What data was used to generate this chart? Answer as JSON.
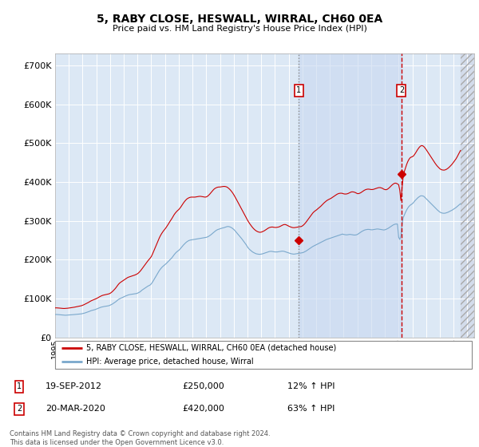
{
  "title": "5, RABY CLOSE, HESWALL, WIRRAL, CH60 0EA",
  "subtitle": "Price paid vs. HM Land Registry's House Price Index (HPI)",
  "ytick_values": [
    0,
    100000,
    200000,
    300000,
    400000,
    500000,
    600000,
    700000
  ],
  "ylim": [
    0,
    730000
  ],
  "xlim_start": 1995.0,
  "xlim_end": 2025.5,
  "plot_bg": "#dce8f5",
  "grid_color": "#c8d8e8",
  "red_color": "#cc0000",
  "blue_color": "#7aa8cc",
  "transaction1_date": 2012.72,
  "transaction1_price": 250000,
  "transaction2_date": 2020.21,
  "transaction2_price": 420000,
  "legend_label_red": "5, RABY CLOSE, HESWALL, WIRRAL, CH60 0EA (detached house)",
  "legend_label_blue": "HPI: Average price, detached house, Wirral",
  "table_rows": [
    {
      "num": "1",
      "date": "19-SEP-2012",
      "price": "£250,000",
      "change": "12% ↑ HPI"
    },
    {
      "num": "2",
      "date": "20-MAR-2020",
      "price": "£420,000",
      "change": "63% ↑ HPI"
    }
  ],
  "footer": "Contains HM Land Registry data © Crown copyright and database right 2024.\nThis data is licensed under the Open Government Licence v3.0.",
  "hpi_years": [
    1995.0,
    1995.083,
    1995.167,
    1995.25,
    1995.333,
    1995.417,
    1995.5,
    1995.583,
    1995.667,
    1995.75,
    1995.833,
    1995.917,
    1996.0,
    1996.083,
    1996.167,
    1996.25,
    1996.333,
    1996.417,
    1996.5,
    1996.583,
    1996.667,
    1996.75,
    1996.833,
    1996.917,
    1997.0,
    1997.083,
    1997.167,
    1997.25,
    1997.333,
    1997.417,
    1997.5,
    1997.583,
    1997.667,
    1997.75,
    1997.833,
    1997.917,
    1998.0,
    1998.083,
    1998.167,
    1998.25,
    1998.333,
    1998.417,
    1998.5,
    1998.583,
    1998.667,
    1998.75,
    1998.833,
    1998.917,
    1999.0,
    1999.083,
    1999.167,
    1999.25,
    1999.333,
    1999.417,
    1999.5,
    1999.583,
    1999.667,
    1999.75,
    1999.833,
    1999.917,
    2000.0,
    2000.083,
    2000.167,
    2000.25,
    2000.333,
    2000.417,
    2000.5,
    2000.583,
    2000.667,
    2000.75,
    2000.833,
    2000.917,
    2001.0,
    2001.083,
    2001.167,
    2001.25,
    2001.333,
    2001.417,
    2001.5,
    2001.583,
    2001.667,
    2001.75,
    2001.833,
    2001.917,
    2002.0,
    2002.083,
    2002.167,
    2002.25,
    2002.333,
    2002.417,
    2002.5,
    2002.583,
    2002.667,
    2002.75,
    2002.833,
    2002.917,
    2003.0,
    2003.083,
    2003.167,
    2003.25,
    2003.333,
    2003.417,
    2003.5,
    2003.583,
    2003.667,
    2003.75,
    2003.833,
    2003.917,
    2004.0,
    2004.083,
    2004.167,
    2004.25,
    2004.333,
    2004.417,
    2004.5,
    2004.583,
    2004.667,
    2004.75,
    2004.833,
    2004.917,
    2005.0,
    2005.083,
    2005.167,
    2005.25,
    2005.333,
    2005.417,
    2005.5,
    2005.583,
    2005.667,
    2005.75,
    2005.833,
    2005.917,
    2006.0,
    2006.083,
    2006.167,
    2006.25,
    2006.333,
    2006.417,
    2006.5,
    2006.583,
    2006.667,
    2006.75,
    2006.833,
    2006.917,
    2007.0,
    2007.083,
    2007.167,
    2007.25,
    2007.333,
    2007.417,
    2007.5,
    2007.583,
    2007.667,
    2007.75,
    2007.833,
    2007.917,
    2008.0,
    2008.083,
    2008.167,
    2008.25,
    2008.333,
    2008.417,
    2008.5,
    2008.583,
    2008.667,
    2008.75,
    2008.833,
    2008.917,
    2009.0,
    2009.083,
    2009.167,
    2009.25,
    2009.333,
    2009.417,
    2009.5,
    2009.583,
    2009.667,
    2009.75,
    2009.833,
    2009.917,
    2010.0,
    2010.083,
    2010.167,
    2010.25,
    2010.333,
    2010.417,
    2010.5,
    2010.583,
    2010.667,
    2010.75,
    2010.833,
    2010.917,
    2011.0,
    2011.083,
    2011.167,
    2011.25,
    2011.333,
    2011.417,
    2011.5,
    2011.583,
    2011.667,
    2011.75,
    2011.833,
    2011.917,
    2012.0,
    2012.083,
    2012.167,
    2012.25,
    2012.333,
    2012.417,
    2012.5,
    2012.583,
    2012.667,
    2012.75,
    2012.833,
    2012.917,
    2013.0,
    2013.083,
    2013.167,
    2013.25,
    2013.333,
    2013.417,
    2013.5,
    2013.583,
    2013.667,
    2013.75,
    2013.833,
    2013.917,
    2014.0,
    2014.083,
    2014.167,
    2014.25,
    2014.333,
    2014.417,
    2014.5,
    2014.583,
    2014.667,
    2014.75,
    2014.833,
    2014.917,
    2015.0,
    2015.083,
    2015.167,
    2015.25,
    2015.333,
    2015.417,
    2015.5,
    2015.583,
    2015.667,
    2015.75,
    2015.833,
    2015.917,
    2016.0,
    2016.083,
    2016.167,
    2016.25,
    2016.333,
    2016.417,
    2016.5,
    2016.583,
    2016.667,
    2016.75,
    2016.833,
    2016.917,
    2017.0,
    2017.083,
    2017.167,
    2017.25,
    2017.333,
    2017.417,
    2017.5,
    2017.583,
    2017.667,
    2017.75,
    2017.833,
    2017.917,
    2018.0,
    2018.083,
    2018.167,
    2018.25,
    2018.333,
    2018.417,
    2018.5,
    2018.583,
    2018.667,
    2018.75,
    2018.833,
    2018.917,
    2019.0,
    2019.083,
    2019.167,
    2019.25,
    2019.333,
    2019.417,
    2019.5,
    2019.583,
    2019.667,
    2019.75,
    2019.833,
    2019.917,
    2020.0,
    2020.083,
    2020.167,
    2020.25,
    2020.333,
    2020.417,
    2020.5,
    2020.583,
    2020.667,
    2020.75,
    2020.833,
    2020.917,
    2021.0,
    2021.083,
    2021.167,
    2021.25,
    2021.333,
    2021.417,
    2021.5,
    2021.583,
    2021.667,
    2021.75,
    2021.833,
    2021.917,
    2022.0,
    2022.083,
    2022.167,
    2022.25,
    2022.333,
    2022.417,
    2022.5,
    2022.583,
    2022.667,
    2022.75,
    2022.833,
    2022.917,
    2023.0,
    2023.083,
    2023.167,
    2023.25,
    2023.333,
    2023.417,
    2023.5,
    2023.583,
    2023.667,
    2023.75,
    2023.833,
    2023.917,
    2024.0,
    2024.083,
    2024.167,
    2024.25,
    2024.333,
    2024.417,
    2024.5
  ],
  "hpi_values": [
    59000,
    59200,
    59100,
    58800,
    58500,
    58200,
    57800,
    57500,
    57300,
    57200,
    57400,
    57600,
    58000,
    58200,
    58400,
    58600,
    58800,
    59100,
    59300,
    59600,
    59900,
    60200,
    60500,
    60800,
    61500,
    62200,
    63000,
    64000,
    65000,
    66000,
    67200,
    68500,
    69500,
    70200,
    71000,
    71800,
    73000,
    74200,
    75500,
    76800,
    77800,
    78500,
    79200,
    79800,
    80200,
    80800,
    81200,
    81800,
    83000,
    84500,
    86000,
    88000,
    90000,
    92000,
    94500,
    97000,
    99000,
    100500,
    101800,
    103000,
    104500,
    106000,
    107200,
    108500,
    109500,
    110200,
    110800,
    111200,
    111500,
    112000,
    112500,
    113000,
    114000,
    115500,
    117000,
    119500,
    122000,
    124000,
    126000,
    128000,
    130000,
    132000,
    133500,
    135000,
    138000,
    142000,
    147000,
    152000,
    157000,
    162000,
    167000,
    172000,
    176000,
    179500,
    182500,
    185000,
    187500,
    190000,
    193000,
    196000,
    199000,
    202000,
    205000,
    209000,
    213000,
    216500,
    219500,
    222000,
    224000,
    227000,
    230500,
    234000,
    237500,
    240500,
    243500,
    246000,
    248000,
    249500,
    250500,
    251000,
    251500,
    252000,
    252500,
    253000,
    253500,
    254000,
    254500,
    255000,
    255500,
    256000,
    256500,
    257000,
    257500,
    258500,
    260000,
    262000,
    264000,
    266500,
    269000,
    271500,
    274000,
    276000,
    277500,
    278500,
    279500,
    280500,
    281500,
    282000,
    283000,
    284000,
    285000,
    285500,
    285000,
    284000,
    282500,
    280500,
    278000,
    275000,
    271500,
    268000,
    264500,
    261000,
    257500,
    254000,
    250000,
    246000,
    242000,
    238000,
    233000,
    229000,
    226000,
    223500,
    221000,
    219000,
    217500,
    216000,
    215000,
    214500,
    214000,
    214000,
    214500,
    215000,
    216000,
    217000,
    218000,
    219000,
    220000,
    221000,
    221500,
    221500,
    221000,
    220500,
    220000,
    220000,
    220000,
    220500,
    221000,
    221500,
    222000,
    222000,
    221500,
    220500,
    219500,
    218500,
    217500,
    216500,
    215500,
    215000,
    214500,
    214500,
    215000,
    215500,
    216000,
    216500,
    217000,
    217500,
    218000,
    219000,
    220500,
    222000,
    224000,
    226000,
    228000,
    230000,
    232000,
    234000,
    235500,
    237000,
    238500,
    240000,
    241500,
    243000,
    244500,
    246000,
    247500,
    249000,
    250500,
    252000,
    253000,
    254000,
    255000,
    256000,
    257000,
    258000,
    259000,
    260000,
    261000,
    262000,
    263000,
    264000,
    265000,
    266000,
    265000,
    264500,
    264000,
    264000,
    264500,
    265000,
    265000,
    264500,
    264000,
    263500,
    263500,
    264000,
    265000,
    267000,
    269000,
    271000,
    273000,
    274500,
    276000,
    277000,
    277500,
    278000,
    278000,
    277500,
    277000,
    277000,
    277500,
    278000,
    278500,
    279000,
    279000,
    278500,
    278000,
    277500,
    277000,
    276500,
    277000,
    278000,
    279500,
    281000,
    283000,
    285000,
    287000,
    289000,
    290500,
    291500,
    291800,
    291500,
    258000,
    252000,
    262000,
    290000,
    308000,
    315000,
    322000,
    328000,
    333000,
    337000,
    340000,
    342000,
    344000,
    347000,
    351000,
    354000,
    357000,
    360000,
    362000,
    364000,
    364500,
    364000,
    363000,
    360000,
    357000,
    354000,
    351000,
    348000,
    345000,
    342000,
    339000,
    336000,
    333000,
    330000,
    327500,
    325000,
    322500,
    321000,
    320000,
    319500,
    319500,
    320000,
    321000,
    322000,
    323500,
    325000,
    326500,
    328000,
    330000,
    332000,
    334000,
    336500,
    339000,
    341500,
    344000
  ],
  "prop_years": [
    1995.0,
    1995.083,
    1995.167,
    1995.25,
    1995.333,
    1995.417,
    1995.5,
    1995.583,
    1995.667,
    1995.75,
    1995.833,
    1995.917,
    1996.0,
    1996.083,
    1996.167,
    1996.25,
    1996.333,
    1996.417,
    1996.5,
    1996.583,
    1996.667,
    1996.75,
    1996.833,
    1996.917,
    1997.0,
    1997.083,
    1997.167,
    1997.25,
    1997.333,
    1997.417,
    1997.5,
    1997.583,
    1997.667,
    1997.75,
    1997.833,
    1997.917,
    1998.0,
    1998.083,
    1998.167,
    1998.25,
    1998.333,
    1998.417,
    1998.5,
    1998.583,
    1998.667,
    1998.75,
    1998.833,
    1998.917,
    1999.0,
    1999.083,
    1999.167,
    1999.25,
    1999.333,
    1999.417,
    1999.5,
    1999.583,
    1999.667,
    1999.75,
    1999.833,
    1999.917,
    2000.0,
    2000.083,
    2000.167,
    2000.25,
    2000.333,
    2000.417,
    2000.5,
    2000.583,
    2000.667,
    2000.75,
    2000.833,
    2000.917,
    2001.0,
    2001.083,
    2001.167,
    2001.25,
    2001.333,
    2001.417,
    2001.5,
    2001.583,
    2001.667,
    2001.75,
    2001.833,
    2001.917,
    2002.0,
    2002.083,
    2002.167,
    2002.25,
    2002.333,
    2002.417,
    2002.5,
    2002.583,
    2002.667,
    2002.75,
    2002.833,
    2002.917,
    2003.0,
    2003.083,
    2003.167,
    2003.25,
    2003.333,
    2003.417,
    2003.5,
    2003.583,
    2003.667,
    2003.75,
    2003.833,
    2003.917,
    2004.0,
    2004.083,
    2004.167,
    2004.25,
    2004.333,
    2004.417,
    2004.5,
    2004.583,
    2004.667,
    2004.75,
    2004.833,
    2004.917,
    2005.0,
    2005.083,
    2005.167,
    2005.25,
    2005.333,
    2005.417,
    2005.5,
    2005.583,
    2005.667,
    2005.75,
    2005.833,
    2005.917,
    2006.0,
    2006.083,
    2006.167,
    2006.25,
    2006.333,
    2006.417,
    2006.5,
    2006.583,
    2006.667,
    2006.75,
    2006.833,
    2006.917,
    2007.0,
    2007.083,
    2007.167,
    2007.25,
    2007.333,
    2007.417,
    2007.5,
    2007.583,
    2007.667,
    2007.75,
    2007.833,
    2007.917,
    2008.0,
    2008.083,
    2008.167,
    2008.25,
    2008.333,
    2008.417,
    2008.5,
    2008.583,
    2008.667,
    2008.75,
    2008.833,
    2008.917,
    2009.0,
    2009.083,
    2009.167,
    2009.25,
    2009.333,
    2009.417,
    2009.5,
    2009.583,
    2009.667,
    2009.75,
    2009.833,
    2009.917,
    2010.0,
    2010.083,
    2010.167,
    2010.25,
    2010.333,
    2010.417,
    2010.5,
    2010.583,
    2010.667,
    2010.75,
    2010.833,
    2010.917,
    2011.0,
    2011.083,
    2011.167,
    2011.25,
    2011.333,
    2011.417,
    2011.5,
    2011.583,
    2011.667,
    2011.75,
    2011.833,
    2011.917,
    2012.0,
    2012.083,
    2012.167,
    2012.25,
    2012.333,
    2012.417,
    2012.5,
    2012.583,
    2012.667,
    2012.75,
    2012.833,
    2012.917,
    2013.0,
    2013.083,
    2013.167,
    2013.25,
    2013.333,
    2013.417,
    2013.5,
    2013.583,
    2013.667,
    2013.75,
    2013.833,
    2013.917,
    2014.0,
    2014.083,
    2014.167,
    2014.25,
    2014.333,
    2014.417,
    2014.5,
    2014.583,
    2014.667,
    2014.75,
    2014.833,
    2014.917,
    2015.0,
    2015.083,
    2015.167,
    2015.25,
    2015.333,
    2015.417,
    2015.5,
    2015.583,
    2015.667,
    2015.75,
    2015.833,
    2015.917,
    2016.0,
    2016.083,
    2016.167,
    2016.25,
    2016.333,
    2016.417,
    2016.5,
    2016.583,
    2016.667,
    2016.75,
    2016.833,
    2016.917,
    2017.0,
    2017.083,
    2017.167,
    2017.25,
    2017.333,
    2017.417,
    2017.5,
    2017.583,
    2017.667,
    2017.75,
    2017.833,
    2017.917,
    2018.0,
    2018.083,
    2018.167,
    2018.25,
    2018.333,
    2018.417,
    2018.5,
    2018.583,
    2018.667,
    2018.75,
    2018.833,
    2018.917,
    2019.0,
    2019.083,
    2019.167,
    2019.25,
    2019.333,
    2019.417,
    2019.5,
    2019.583,
    2019.667,
    2019.75,
    2019.833,
    2019.917,
    2020.0,
    2020.083,
    2020.167,
    2020.25,
    2020.333,
    2020.417,
    2020.5,
    2020.583,
    2020.667,
    2020.75,
    2020.833,
    2020.917,
    2021.0,
    2021.083,
    2021.167,
    2021.25,
    2021.333,
    2021.417,
    2021.5,
    2021.583,
    2021.667,
    2021.75,
    2021.833,
    2021.917,
    2022.0,
    2022.083,
    2022.167,
    2022.25,
    2022.333,
    2022.417,
    2022.5,
    2022.583,
    2022.667,
    2022.75,
    2022.833,
    2022.917,
    2023.0,
    2023.083,
    2023.167,
    2023.25,
    2023.333,
    2023.417,
    2023.5,
    2023.583,
    2023.667,
    2023.75,
    2023.833,
    2023.917,
    2024.0,
    2024.083,
    2024.167,
    2024.25,
    2024.333,
    2024.417,
    2024.5
  ],
  "prop_values": [
    76000,
    76200,
    76100,
    75800,
    75500,
    75200,
    74900,
    74700,
    74600,
    74800,
    75000,
    75300,
    75800,
    76200,
    76600,
    77000,
    77500,
    78000,
    78600,
    79200,
    79800,
    80400,
    81000,
    81700,
    82800,
    84000,
    85500,
    87000,
    88500,
    90000,
    91800,
    93500,
    95000,
    96200,
    97500,
    98800,
    100000,
    101500,
    103200,
    105000,
    106500,
    107800,
    108800,
    109500,
    110000,
    110800,
    111500,
    112200,
    113500,
    115500,
    118000,
    121000,
    124000,
    127500,
    131500,
    135500,
    139000,
    141500,
    143500,
    145500,
    147500,
    149500,
    151500,
    153500,
    155000,
    156000,
    157000,
    158000,
    159000,
    160000,
    161000,
    162500,
    164000,
    166500,
    169500,
    173000,
    177000,
    181000,
    185000,
    189000,
    193000,
    197000,
    200500,
    204000,
    208000,
    214000,
    221000,
    228000,
    235000,
    242000,
    249000,
    256000,
    262000,
    267000,
    271500,
    275500,
    279000,
    283000,
    287500,
    292000,
    297000,
    301500,
    306000,
    311000,
    316000,
    320000,
    323500,
    326500,
    329000,
    332500,
    336500,
    341000,
    345500,
    349500,
    353000,
    356000,
    358000,
    359500,
    360500,
    361000,
    361000,
    361000,
    361000,
    361500,
    362000,
    362500,
    363000,
    363000,
    362500,
    362000,
    361500,
    361000,
    361500,
    363000,
    365500,
    368500,
    372000,
    375500,
    379000,
    382000,
    384000,
    385500,
    386500,
    387000,
    387000,
    387500,
    388000,
    388500,
    388500,
    388000,
    387000,
    385000,
    382500,
    379500,
    376000,
    372000,
    367500,
    362500,
    357000,
    351500,
    346000,
    340500,
    335000,
    329500,
    324000,
    318500,
    313000,
    307500,
    302000,
    297000,
    292500,
    288500,
    284500,
    281000,
    278000,
    275500,
    273500,
    272000,
    271000,
    270500,
    271000,
    272000,
    273500,
    275000,
    277000,
    279000,
    281000,
    282500,
    283500,
    284000,
    284000,
    283500,
    283000,
    283000,
    283500,
    284000,
    285000,
    286500,
    288000,
    289500,
    290500,
    290500,
    289500,
    288000,
    286500,
    285000,
    284000,
    283000,
    282500,
    282500,
    283000,
    283500,
    284000,
    284500,
    285000,
    285500,
    287000,
    289500,
    292500,
    296000,
    300000,
    304000,
    308000,
    312000,
    316000,
    320000,
    323000,
    325500,
    327500,
    330000,
    332500,
    335000,
    337500,
    340500,
    343500,
    346500,
    349000,
    351500,
    353500,
    355000,
    356500,
    358000,
    360000,
    362000,
    364000,
    366000,
    368000,
    369500,
    370500,
    371000,
    371000,
    370500,
    369500,
    369000,
    369000,
    369500,
    370500,
    372000,
    373500,
    374500,
    374500,
    374000,
    373000,
    371500,
    370000,
    370000,
    371000,
    372500,
    374500,
    376500,
    378500,
    380000,
    381000,
    381500,
    381500,
    381000,
    380500,
    380500,
    381000,
    382000,
    383000,
    384000,
    385000,
    385500,
    385500,
    384500,
    383500,
    381500,
    380500,
    380000,
    381000,
    383000,
    385500,
    388500,
    391500,
    394000,
    396000,
    397000,
    396500,
    395000,
    393000,
    379000,
    352000,
    385000,
    415000,
    427000,
    436000,
    445000,
    452500,
    458000,
    462000,
    464000,
    465000,
    467000,
    471000,
    475500,
    480500,
    485000,
    489000,
    492000,
    493500,
    493000,
    491000,
    487500,
    483500,
    479000,
    474500,
    470000,
    465500,
    461000,
    456500,
    452000,
    447500,
    443500,
    440000,
    437000,
    434000,
    432000,
    431000,
    430500,
    430500,
    431500,
    433000,
    435000,
    437500,
    440500,
    443500,
    447000,
    451000,
    455000,
    459000,
    464000,
    469500,
    475500,
    481000
  ]
}
